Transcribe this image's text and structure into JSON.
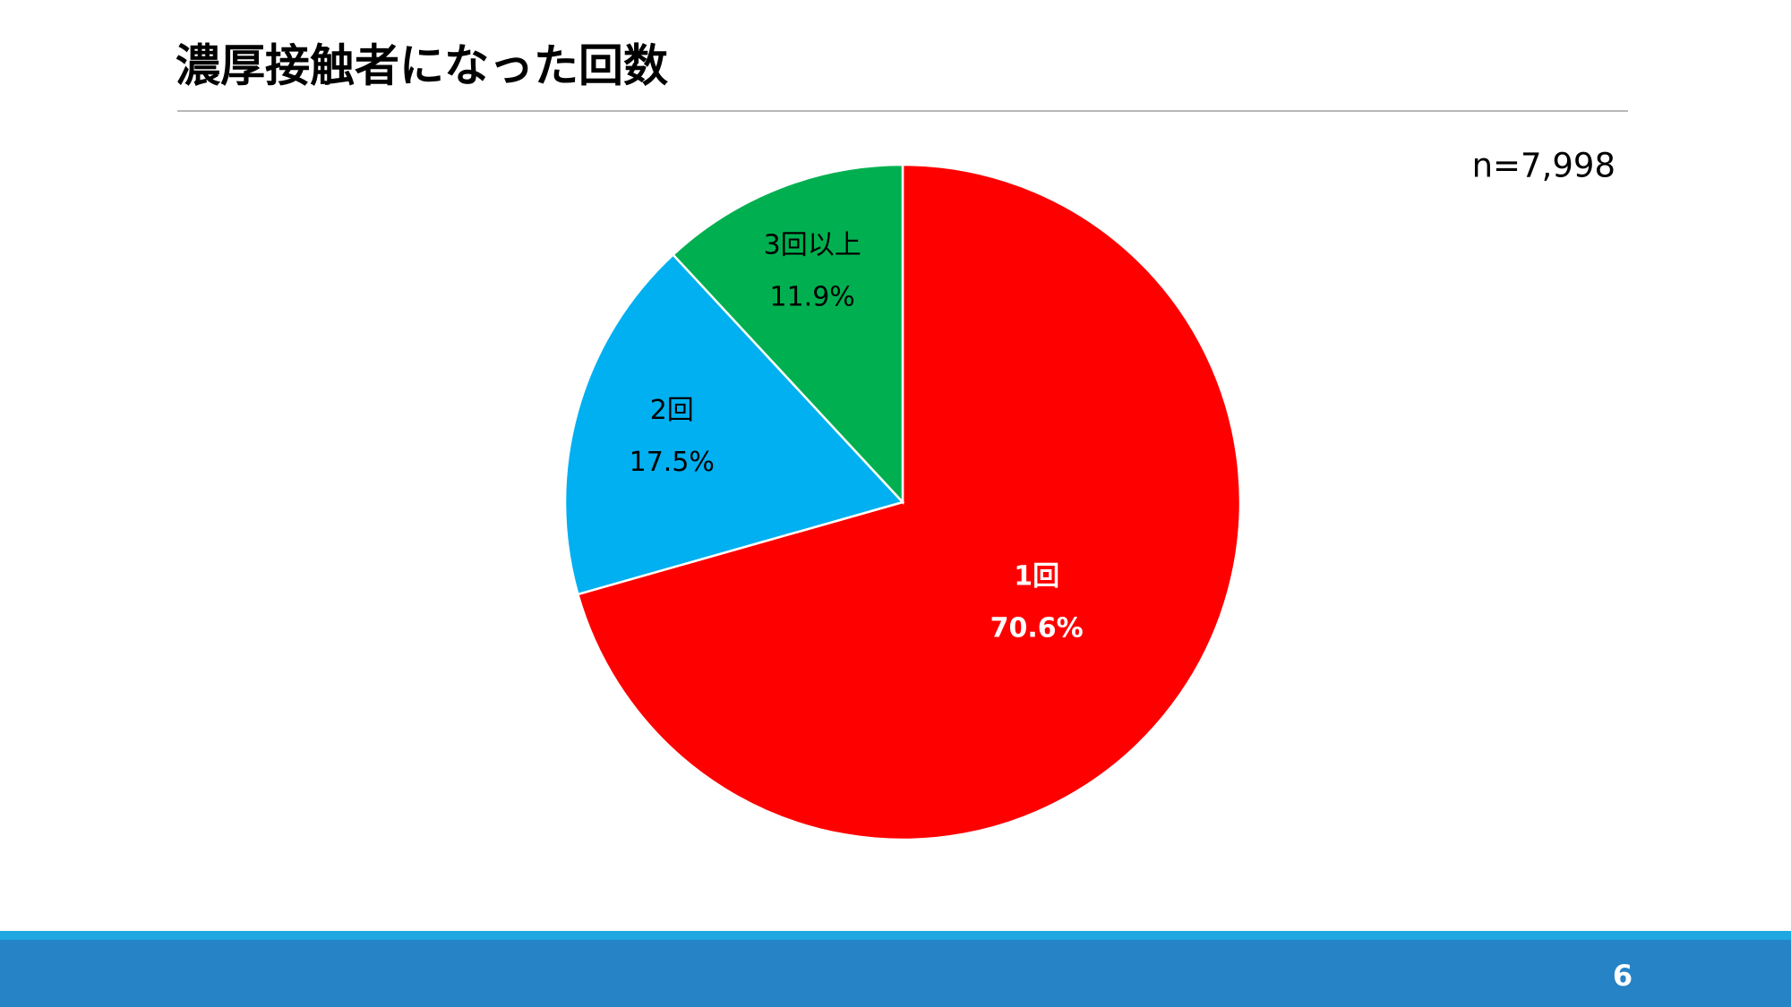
{
  "chart_data": {
    "type": "pie",
    "title": "濃厚接触者になった回数",
    "annotation": "n=7,998",
    "categories": [
      "1回",
      "2回",
      "3回以上"
    ],
    "values": [
      70.6,
      17.5,
      11.9
    ],
    "value_labels": [
      "70.6%",
      "17.5%",
      "11.9%"
    ],
    "colors": [
      "#ff0000",
      "#00b0f0",
      "#00b050"
    ],
    "label_colors": [
      "#ffffff",
      "#000000",
      "#000000"
    ]
  },
  "footer": {
    "page_number": "6"
  }
}
